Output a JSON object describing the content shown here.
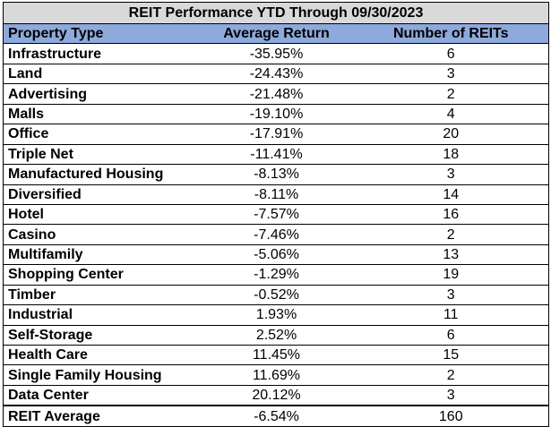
{
  "chart_data": {
    "type": "table",
    "title": "REIT Performance YTD Through 09/30/2023",
    "columns": [
      "Property Type",
      "Average Return",
      "Number of REITs"
    ],
    "rows": [
      {
        "type": "Infrastructure",
        "return": "-35.95%",
        "count": "6"
      },
      {
        "type": "Land",
        "return": "-24.43%",
        "count": "3"
      },
      {
        "type": "Advertising",
        "return": "-21.48%",
        "count": "2"
      },
      {
        "type": "Malls",
        "return": "-19.10%",
        "count": "4"
      },
      {
        "type": "Office",
        "return": "-17.91%",
        "count": "20"
      },
      {
        "type": "Triple Net",
        "return": "-11.41%",
        "count": "18"
      },
      {
        "type": "Manufactured Housing",
        "return": "-8.13%",
        "count": "3"
      },
      {
        "type": "Diversified",
        "return": "-8.11%",
        "count": "14"
      },
      {
        "type": "Hotel",
        "return": "-7.57%",
        "count": "16"
      },
      {
        "type": "Casino",
        "return": "-7.46%",
        "count": "2"
      },
      {
        "type": "Multifamily",
        "return": "-5.06%",
        "count": "13"
      },
      {
        "type": "Shopping Center",
        "return": "-1.29%",
        "count": "19"
      },
      {
        "type": "Timber",
        "return": "-0.52%",
        "count": "3"
      },
      {
        "type": "Industrial",
        "return": "1.93%",
        "count": "11"
      },
      {
        "type": "Self-Storage",
        "return": "2.52%",
        "count": "6"
      },
      {
        "type": "Health Care",
        "return": "11.45%",
        "count": "15"
      },
      {
        "type": "Single Family Housing",
        "return": "11.69%",
        "count": "2"
      },
      {
        "type": "Data Center",
        "return": "20.12%",
        "count": "3"
      }
    ],
    "summary": {
      "type": "REIT Average",
      "return": "-6.54%",
      "count": "160"
    }
  },
  "colors": {
    "title_bg": "#d9d9d9",
    "header_bg": "#8ea9db"
  }
}
